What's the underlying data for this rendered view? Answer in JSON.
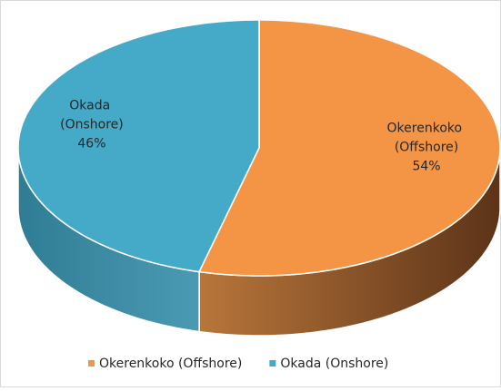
{
  "chart_data": {
    "type": "pie3d",
    "categories": [
      "Okerenkoko (Offshore)",
      "Okada (Onshore)"
    ],
    "values": [
      54,
      46
    ],
    "value_labels": [
      "54%",
      "46%"
    ],
    "colors": [
      "#f39545",
      "#44aac8"
    ],
    "legend": "bottom"
  }
}
